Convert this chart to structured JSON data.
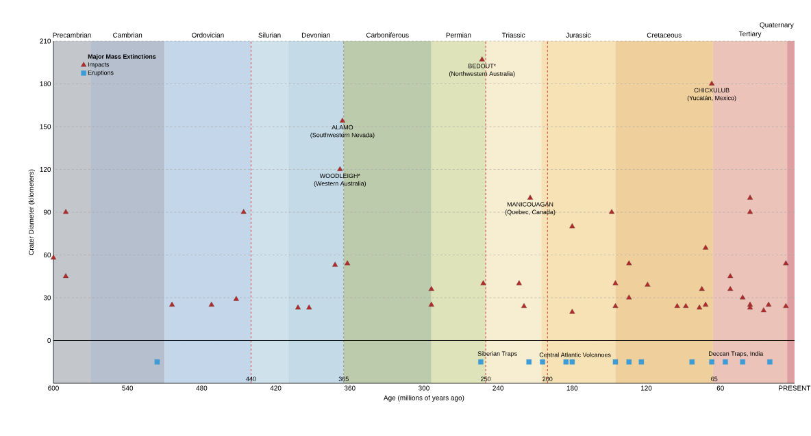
{
  "chart_data": {
    "type": "scatter",
    "xlabel": "Age (millions of years ago)",
    "ylabel": "Crater Diameter (kilometers)",
    "legend_title": "Major Mass Extinctions",
    "legend": "top left",
    "grid": "y",
    "xlim": [
      600,
      0
    ],
    "ylim": [
      -30,
      210
    ],
    "xticks": [
      600,
      540,
      480,
      420,
      360,
      300,
      240,
      180,
      120,
      60,
      {
        "value": 0,
        "label": "PRESENT"
      }
    ],
    "yticks": [
      0,
      30,
      60,
      90,
      120,
      150,
      180,
      210
    ],
    "series": [
      {
        "name": "Impacts",
        "color": "#b22a2a",
        "marker": "triangle",
        "x": [
          600,
          590,
          590,
          504,
          472,
          452,
          446,
          402,
          393,
          372,
          362,
          366,
          368,
          294,
          294,
          253,
          252,
          223,
          219,
          214,
          180,
          180,
          148,
          145,
          145,
          134,
          134,
          119,
          95,
          88,
          77,
          75,
          72,
          72,
          67,
          52,
          52,
          42,
          36,
          36,
          36,
          36,
          25,
          21,
          7,
          7
        ],
        "values": [
          58,
          90,
          45,
          25,
          25,
          29,
          90,
          23,
          23,
          53,
          54,
          154,
          120,
          36,
          25,
          197,
          40,
          40,
          24,
          100,
          80,
          20,
          90,
          40,
          24,
          54,
          30,
          39,
          24,
          24,
          23,
          36,
          25,
          65,
          180,
          45,
          36,
          30,
          100,
          90,
          25,
          23,
          21,
          25,
          54,
          24
        ]
      },
      {
        "name": "Eruptions",
        "color": "#3d9bd6",
        "marker": "square",
        "x": [
          516,
          254,
          215,
          204,
          185,
          180,
          145,
          134,
          124,
          83,
          67,
          56,
          42,
          20
        ],
        "values": [
          -15,
          -15,
          -15,
          -15,
          -15,
          -15,
          -15,
          -15,
          -15,
          -15,
          -15,
          -15,
          -15,
          -15
        ]
      }
    ],
    "bands": [
      {
        "axis": "x",
        "from": 600,
        "to": 570,
        "label": "Precambrian",
        "color": "#c3c7cb"
      },
      {
        "axis": "x",
        "from": 570,
        "to": 510,
        "label": "Cambrian",
        "color": "#b5bfcd"
      },
      {
        "axis": "x",
        "from": 510,
        "to": 440,
        "label": "Ordovician",
        "color": "#c4d7ea"
      },
      {
        "axis": "x",
        "from": 440,
        "to": 410,
        "label": "Silurian",
        "color": "#cfe2ec"
      },
      {
        "axis": "x",
        "from": 410,
        "to": 365,
        "label": "Devonian",
        "color": "#c4dae6"
      },
      {
        "axis": "x",
        "from": 365,
        "to": 294,
        "label": "Carboniferous",
        "color": "#bccbab"
      },
      {
        "axis": "x",
        "from": 294,
        "to": 250,
        "label": "Permian",
        "color": "#dfe3b9"
      },
      {
        "axis": "x",
        "from": 250,
        "to": 205,
        "label": "Triassic",
        "color": "#f7edd0"
      },
      {
        "axis": "x",
        "from": 205,
        "to": 145,
        "label": "Jurassic",
        "color": "#f6e2b4"
      },
      {
        "axis": "x",
        "from": 145,
        "to": 66,
        "label": "Cretaceous",
        "color": "#efd09c"
      },
      {
        "axis": "x",
        "from": 66,
        "to": 6,
        "label": "Tertiary",
        "color": "#ebc3b9"
      },
      {
        "axis": "x",
        "from": 6,
        "to": 0,
        "label": "Quaternary",
        "color": "#de9fa3"
      }
    ],
    "ref_lines": [
      {
        "axis": "x",
        "value": 440,
        "label": "440",
        "color": "#c0282d",
        "line_style": "dashed"
      },
      {
        "axis": "x",
        "value": 365,
        "label": "365",
        "color": "#8a8a8a",
        "line_style": "dashed"
      },
      {
        "axis": "x",
        "value": 250,
        "label": "250",
        "color": "#c0282d",
        "line_style": "dashed"
      },
      {
        "axis": "x",
        "value": 200,
        "label": "200",
        "color": "#c0282d",
        "line_style": "dashed"
      },
      {
        "axis": "y",
        "value": 0,
        "color": "#000000",
        "line_style": "solid"
      }
    ],
    "annotations": [
      {
        "text": "ALAMO",
        "x": 366,
        "y": 154
      },
      {
        "text": "(Southwestern Nevada)",
        "x": 366,
        "y": 154
      },
      {
        "text": "WOODLEIGH*",
        "x": 368,
        "y": 120
      },
      {
        "text": "(Western Australia)",
        "x": 368,
        "y": 120
      },
      {
        "text": "BEDOUT*",
        "x": 253,
        "y": 197
      },
      {
        "text": "(Northwestern Australia)",
        "x": 253,
        "y": 197
      },
      {
        "text": "MANICOUAGAN",
        "x": 214,
        "y": 100
      },
      {
        "text": "(Quebec, Canada)",
        "x": 214,
        "y": 100
      },
      {
        "text": "CHICXULUB",
        "x": 67,
        "y": 180
      },
      {
        "text": "(Yucatán, Mexico)",
        "x": 67,
        "y": 180
      },
      {
        "text": "Siberian Traps",
        "x": 254,
        "y": -15
      },
      {
        "text": "Central Atlantic Volcanoes",
        "x": 204,
        "y": -15
      },
      {
        "text": "Deccan Traps, India",
        "x": 67,
        "y": -15
      },
      {
        "text": "65",
        "x": 65
      }
    ]
  }
}
